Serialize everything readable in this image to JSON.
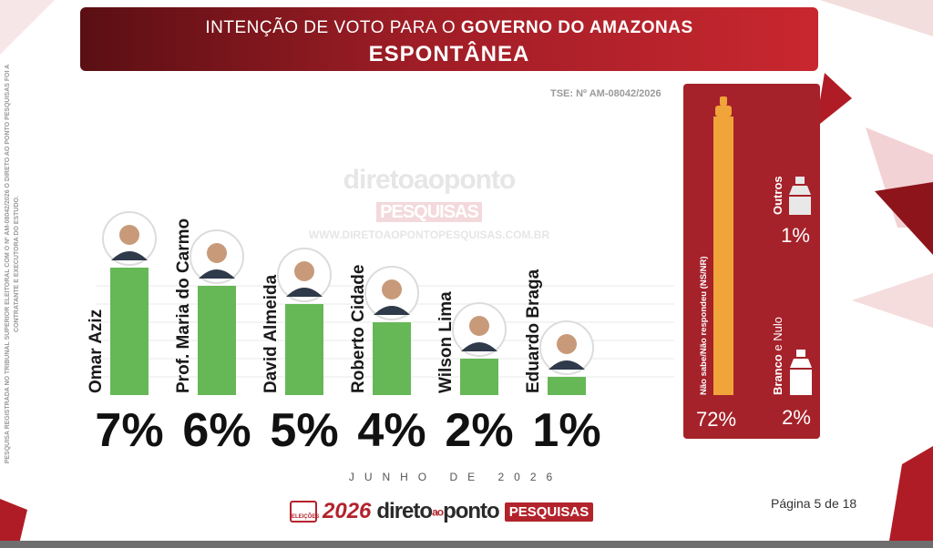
{
  "header": {
    "title_prefix": "INTENÇÃO DE VOTO PARA O",
    "title_bold": "GOVERNO DO AMAZONAS",
    "subtitle": "ESPONTÂNEA"
  },
  "side_note": "PESQUISA REGISTRADA NO TRIBUNAL SUPERIOR ELEITORAL COM O Nº AM-08042/2026 O DIRETO AO PONTO PESQUISAS FOI A CONTRATANTE E EXECUTORA DO ESTUDO.",
  "tse_code": "TSE: Nº AM-08042/2026",
  "watermark": {
    "brand": "diretoaoponto",
    "tag": "PESQUISAS",
    "url": "WWW.DIRETOAOPONTOPESQUISAS.COM.BR"
  },
  "chart_data": {
    "type": "bar",
    "categories": [
      "Omar Aziz",
      "Prof. Maria do Carmo",
      "David Almeida",
      "Roberto Cidade",
      "Wilson Lima",
      "Eduardo Braga"
    ],
    "values": [
      7,
      6,
      5,
      4,
      2,
      1
    ],
    "value_labels": [
      "7%",
      "6%",
      "5%",
      "4%",
      "2%",
      "1%"
    ],
    "unit": "%",
    "bar_color": "#66b857",
    "ylim": [
      0,
      8
    ],
    "grid": true,
    "side_panel": {
      "bars": [
        {
          "label": "Não sabe/Não respondeu (NS/NR)",
          "value": 72,
          "value_label": "72%",
          "color": "#f0a43a"
        }
      ],
      "others": [
        {
          "label": "Outros",
          "value": 1,
          "value_label": "1%"
        },
        {
          "label_bold": "Branco",
          "label_rest": "e Nulo",
          "value": 2,
          "value_label": "2%"
        }
      ],
      "background": "#a5222a"
    }
  },
  "footer": {
    "month": "JUNHO DE 2026",
    "elections_label": "ELEIÇÕES",
    "year": "2026",
    "brand_a": "direto",
    "brand_b": "ao",
    "brand_c": "ponto",
    "brand_tag": "PESQUISAS",
    "page": "Página 5 de 18"
  },
  "colors": {
    "header_dark": "#5a0f13",
    "header_light": "#c9272f",
    "accent": "#b3232c",
    "bar": "#66b857",
    "nsnr": "#f0a43a"
  }
}
